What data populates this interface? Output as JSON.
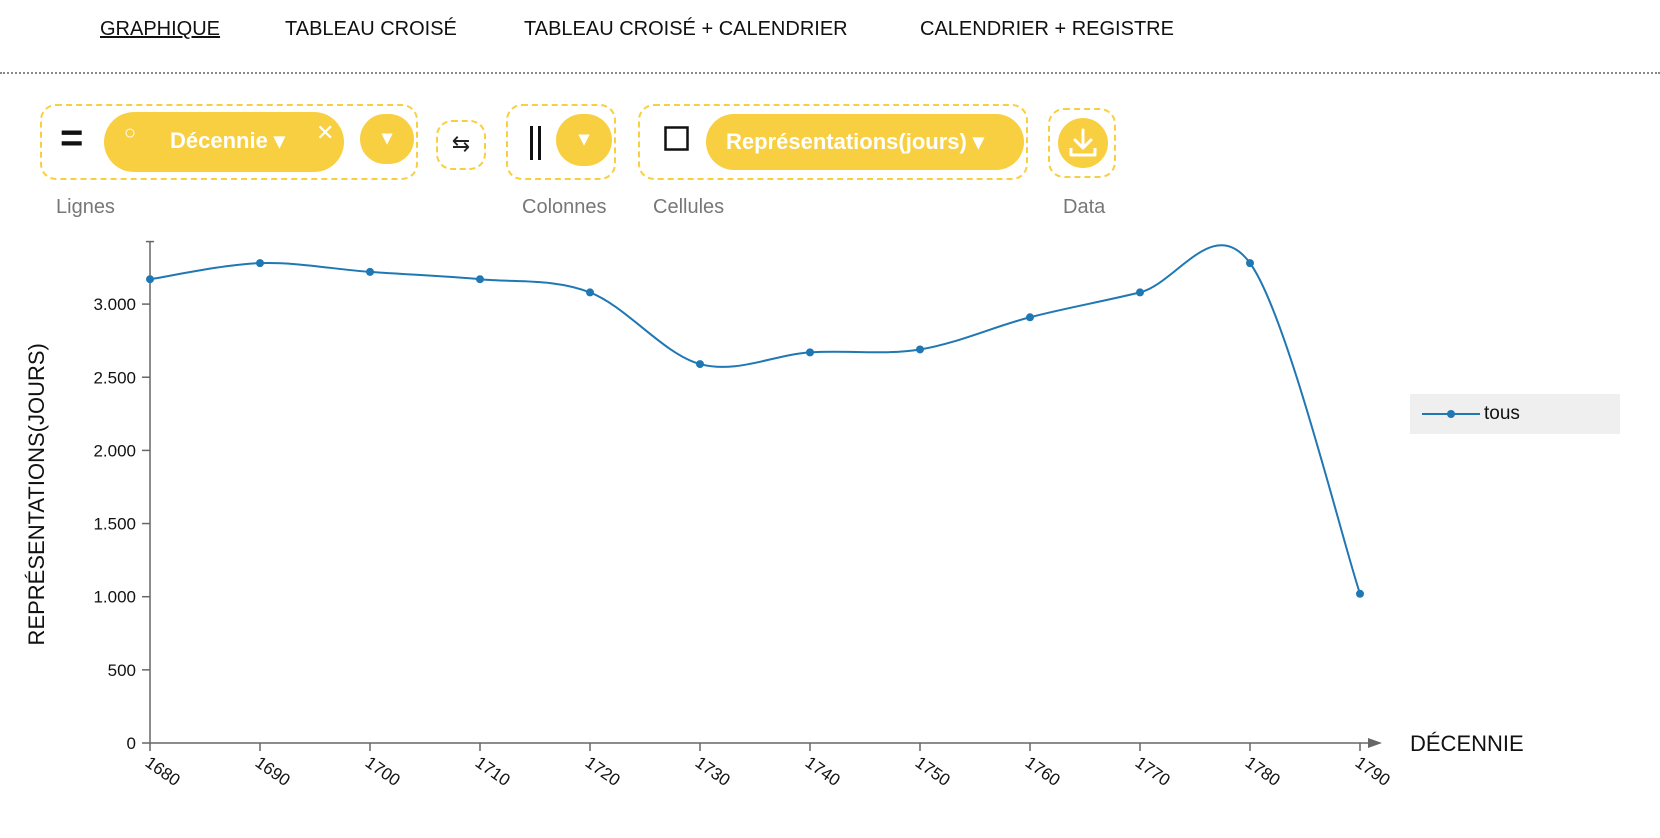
{
  "tabs": [
    {
      "label": "GRAPHIQUE",
      "active": true
    },
    {
      "label": "TABLEAU CROISÉ",
      "active": false
    },
    {
      "label": "TABLEAU CROISÉ + CALENDRIER",
      "active": false
    },
    {
      "label": "CALENDRIER + REGISTRE",
      "active": false
    }
  ],
  "toolbar": {
    "lignes": {
      "label": "Lignes",
      "pill_label": "Décennie ▾",
      "remove_glyph": "✕",
      "add_glyph": "▾",
      "radio_glyph": "○",
      "icon": "equals-icon"
    },
    "swap": {
      "glyph": "⇆",
      "icon": "swap-icon"
    },
    "colonnes": {
      "label": "Colonnes",
      "add_glyph": "▾",
      "icon": "columns-icon"
    },
    "cellules": {
      "label": "Cellules",
      "pill_label": "Représentations(jours) ▾",
      "icon": "square-icon"
    },
    "data": {
      "label": "Data",
      "icon": "download-icon"
    }
  },
  "colors": {
    "accent": "#f9cf42",
    "series": "#1f77b4",
    "legend_bg": "#efefef"
  },
  "chart_data": {
    "type": "line",
    "xlabel": "DÉCENNIE",
    "ylabel": "REPRÉSENTATIONS(JOURS)",
    "ylim": [
      0,
      3400
    ],
    "yticks": [
      {
        "value": 0,
        "label": "0"
      },
      {
        "value": 500,
        "label": "500"
      },
      {
        "value": 1000,
        "label": "1.000"
      },
      {
        "value": 1500,
        "label": "1.500"
      },
      {
        "value": 2000,
        "label": "2.000"
      },
      {
        "value": 2500,
        "label": "2.500"
      },
      {
        "value": 3000,
        "label": "3.000"
      }
    ],
    "categories": [
      "1680",
      "1690",
      "1700",
      "1710",
      "1720",
      "1730",
      "1740",
      "1750",
      "1760",
      "1770",
      "1780",
      "1790"
    ],
    "series": [
      {
        "name": "tous",
        "values": [
          3170,
          3280,
          3220,
          3170,
          3080,
          2590,
          2670,
          2690,
          2910,
          3080,
          3280,
          1020
        ]
      }
    ],
    "legend_position": "right"
  }
}
